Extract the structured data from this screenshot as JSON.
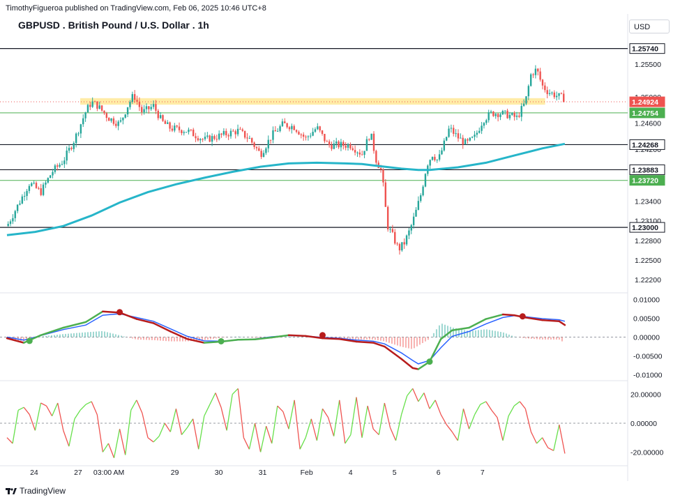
{
  "header": {
    "publisher": "TimothyFigueroa published on TradingView.com, Feb 06, 2025 10:46 UTC+8",
    "symbol": "GBPUSD . British Pound / U.S. Dollar . 1h",
    "currency": "USD"
  },
  "footer": {
    "brand": "TradingView"
  },
  "colors": {
    "bull": "#26a69a",
    "bear": "#ef5350",
    "ema": "#26b5c9",
    "macd_green": "#4caf50",
    "macd_red": "#b71c1c",
    "signal": "#2962ff",
    "support_green": "#4caf50",
    "zone": "#ffe58a"
  },
  "chart_data": [
    {
      "type": "candlestick",
      "pane": "price",
      "title": "GBPUSD . British Pound / U.S. Dollar . 1h",
      "ylim": [
        1.2205,
        1.2595
      ],
      "y_ticks": [
        "1.25500",
        "1.25000",
        "1.24600",
        "1.24200",
        "1.23400",
        "1.23100",
        "1.22800",
        "1.22500",
        "1.22200"
      ],
      "x_ticks": [
        {
          "label": "24",
          "t": 0.03
        },
        {
          "label": "27",
          "t": 0.13
        },
        {
          "label": "03:00 AM",
          "t": 0.2
        },
        {
          "label": "29",
          "t": 0.35
        },
        {
          "label": "30",
          "t": 0.45
        },
        {
          "label": "31",
          "t": 0.55
        },
        {
          "label": "Feb",
          "t": 0.65
        },
        {
          "label": "4",
          "t": 0.75
        },
        {
          "label": "5",
          "t": 0.85
        },
        {
          "label": "6",
          "t": 0.95
        },
        {
          "label": "7",
          "t": 1.05
        }
      ],
      "close_path": [
        [
          0.0,
          1.2302
        ],
        [
          0.02,
          1.2335
        ],
        [
          0.04,
          1.2368
        ],
        [
          0.06,
          1.2354
        ],
        [
          0.08,
          1.2385
        ],
        [
          0.1,
          1.2402
        ],
        [
          0.12,
          1.2435
        ],
        [
          0.14,
          1.2478
        ],
        [
          0.15,
          1.2492
        ],
        [
          0.16,
          1.2487
        ],
        [
          0.18,
          1.2468
        ],
        [
          0.2,
          1.2458
        ],
        [
          0.215,
          1.2488
        ],
        [
          0.225,
          1.2503
        ],
        [
          0.24,
          1.2476
        ],
        [
          0.26,
          1.2486
        ],
        [
          0.275,
          1.2462
        ],
        [
          0.29,
          1.2452
        ],
        [
          0.32,
          1.2448
        ],
        [
          0.35,
          1.2434
        ],
        [
          0.38,
          1.2441
        ],
        [
          0.41,
          1.2448
        ],
        [
          0.43,
          1.2436
        ],
        [
          0.45,
          1.2412
        ],
        [
          0.47,
          1.2441
        ],
        [
          0.49,
          1.2458
        ],
        [
          0.51,
          1.2454
        ],
        [
          0.53,
          1.2436
        ],
        [
          0.55,
          1.2453
        ],
        [
          0.57,
          1.2426
        ],
        [
          0.59,
          1.2426
        ],
        [
          0.61,
          1.2426
        ],
        [
          0.63,
          1.2412
        ],
        [
          0.645,
          1.2445
        ],
        [
          0.655,
          1.2404
        ],
        [
          0.665,
          1.2385
        ],
        [
          0.675,
          1.2303
        ],
        [
          0.685,
          1.2286
        ],
        [
          0.695,
          1.2266
        ],
        [
          0.705,
          1.2276
        ],
        [
          0.715,
          1.2296
        ],
        [
          0.725,
          1.2322
        ],
        [
          0.735,
          1.2352
        ],
        [
          0.745,
          1.2396
        ],
        [
          0.755,
          1.2412
        ],
        [
          0.765,
          1.2402
        ],
        [
          0.775,
          1.2426
        ],
        [
          0.785,
          1.2452
        ],
        [
          0.8,
          1.2438
        ],
        [
          0.815,
          1.2428
        ],
        [
          0.83,
          1.2438
        ],
        [
          0.845,
          1.2465
        ],
        [
          0.86,
          1.2475
        ],
        [
          0.875,
          1.2475
        ],
        [
          0.89,
          1.2472
        ],
        [
          0.905,
          1.2468
        ],
        [
          0.92,
          1.2492
        ],
        [
          0.93,
          1.2535
        ],
        [
          0.94,
          1.2542
        ],
        [
          0.95,
          1.2517
        ],
        [
          0.96,
          1.2508
        ],
        [
          0.975,
          1.2502
        ],
        [
          0.99,
          1.2497
        ]
      ],
      "ema": [
        [
          0.0,
          1.2288
        ],
        [
          0.05,
          1.2293
        ],
        [
          0.1,
          1.2302
        ],
        [
          0.15,
          1.2318
        ],
        [
          0.2,
          1.2338
        ],
        [
          0.25,
          1.2354
        ],
        [
          0.3,
          1.2366
        ],
        [
          0.35,
          1.2376
        ],
        [
          0.4,
          1.2385
        ],
        [
          0.45,
          1.2393
        ],
        [
          0.5,
          1.2398
        ],
        [
          0.55,
          1.2399
        ],
        [
          0.6,
          1.2398
        ],
        [
          0.63,
          1.2397
        ],
        [
          0.65,
          1.2395
        ],
        [
          0.7,
          1.239
        ],
        [
          0.73,
          1.2388
        ],
        [
          0.75,
          1.2388
        ],
        [
          0.8,
          1.2392
        ],
        [
          0.85,
          1.2399
        ],
        [
          0.9,
          1.241
        ],
        [
          0.95,
          1.2421
        ],
        [
          0.99,
          1.2428
        ]
      ],
      "horizontal_lines": [
        {
          "value": 1.2574,
          "label": "1.25740",
          "style": "black"
        },
        {
          "value": 1.24268,
          "label": "1.24268",
          "style": "black"
        },
        {
          "value": 1.23883,
          "label": "1.23883",
          "style": "black"
        },
        {
          "value": 1.23,
          "label": "1.23000",
          "style": "black"
        },
        {
          "value": 1.24754,
          "label": "1.24754",
          "style": "green"
        },
        {
          "value": 1.2372,
          "label": "1.23720",
          "style": "green"
        },
        {
          "value": 1.24924,
          "label": "1.24924",
          "style": "red-dotted"
        }
      ],
      "zone": {
        "from": 1.2488,
        "to": 1.2498,
        "t_start": 0.13,
        "t_end": 0.955
      }
    },
    {
      "type": "line",
      "pane": "macd",
      "ylim": [
        -0.011,
        0.011
      ],
      "y_ticks": [
        "0.01000",
        "0.00500",
        "0.00000",
        "-0.00500",
        "-0.01000"
      ],
      "macd": [
        [
          0.0,
          -0.0003
        ],
        [
          0.03,
          -0.0015
        ],
        [
          0.06,
          0.0005
        ],
        [
          0.1,
          0.0025
        ],
        [
          0.14,
          0.004
        ],
        [
          0.17,
          0.0068
        ],
        [
          0.2,
          0.0065
        ],
        [
          0.23,
          0.0048
        ],
        [
          0.26,
          0.0037
        ],
        [
          0.29,
          0.0015
        ],
        [
          0.32,
          -0.0005
        ],
        [
          0.35,
          -0.0015
        ],
        [
          0.38,
          -0.0012
        ],
        [
          0.41,
          -0.0007
        ],
        [
          0.44,
          -0.0006
        ],
        [
          0.47,
          -0.0001
        ],
        [
          0.5,
          0.0005
        ],
        [
          0.53,
          0.0003
        ],
        [
          0.56,
          -0.0003
        ],
        [
          0.59,
          -0.0005
        ],
        [
          0.62,
          -0.0012
        ],
        [
          0.65,
          -0.0015
        ],
        [
          0.67,
          -0.0025
        ],
        [
          0.7,
          -0.0058
        ],
        [
          0.72,
          -0.0082
        ],
        [
          0.73,
          -0.0085
        ],
        [
          0.75,
          -0.0065
        ],
        [
          0.77,
          -0.0005
        ],
        [
          0.79,
          0.0018
        ],
        [
          0.82,
          0.0025
        ],
        [
          0.85,
          0.0048
        ],
        [
          0.88,
          0.006
        ],
        [
          0.9,
          0.0058
        ],
        [
          0.92,
          0.0052
        ],
        [
          0.95,
          0.0045
        ],
        [
          0.98,
          0.0042
        ],
        [
          0.99,
          0.0032
        ]
      ],
      "signal": [
        [
          0.0,
          0.0
        ],
        [
          0.03,
          -0.0008
        ],
        [
          0.06,
          0.0004
        ],
        [
          0.1,
          0.002
        ],
        [
          0.14,
          0.0032
        ],
        [
          0.17,
          0.0058
        ],
        [
          0.2,
          0.0062
        ],
        [
          0.23,
          0.0052
        ],
        [
          0.26,
          0.0042
        ],
        [
          0.29,
          0.0022
        ],
        [
          0.32,
          0.0002
        ],
        [
          0.35,
          -0.001
        ],
        [
          0.38,
          -0.0011
        ],
        [
          0.41,
          -0.0008
        ],
        [
          0.44,
          -0.0005
        ],
        [
          0.47,
          0.0001
        ],
        [
          0.5,
          0.0004
        ],
        [
          0.53,
          0.0003
        ],
        [
          0.56,
          -0.0001
        ],
        [
          0.59,
          -0.0003
        ],
        [
          0.62,
          -0.0008
        ],
        [
          0.65,
          -0.0011
        ],
        [
          0.67,
          -0.0018
        ],
        [
          0.7,
          -0.0042
        ],
        [
          0.72,
          -0.0062
        ],
        [
          0.73,
          -0.0071
        ],
        [
          0.75,
          -0.0062
        ],
        [
          0.77,
          -0.0028
        ],
        [
          0.79,
          0.0002
        ],
        [
          0.82,
          0.0015
        ],
        [
          0.85,
          0.0035
        ],
        [
          0.88,
          0.0052
        ],
        [
          0.9,
          0.0057
        ],
        [
          0.92,
          0.0054
        ],
        [
          0.95,
          0.0049
        ],
        [
          0.98,
          0.0046
        ],
        [
          0.99,
          0.0042
        ]
      ],
      "cross_markers": [
        {
          "t": 0.04,
          "value": -0.001,
          "type": "bull"
        },
        {
          "t": 0.2,
          "value": 0.0066,
          "type": "bear"
        },
        {
          "t": 0.38,
          "value": -0.0011,
          "type": "bull"
        },
        {
          "t": 0.56,
          "value": 0.0005,
          "type": "bear"
        },
        {
          "t": 0.75,
          "value": -0.0065,
          "type": "bull"
        },
        {
          "t": 0.915,
          "value": 0.0055,
          "type": "bear"
        }
      ]
    },
    {
      "type": "line",
      "pane": "oscillator",
      "ylim": [
        -28,
        28
      ],
      "y_ticks": [
        "20.00000",
        "0.00000",
        "-20.00000"
      ],
      "series": [
        [
          0.0,
          -10
        ],
        [
          0.01,
          -14
        ],
        [
          0.02,
          9
        ],
        [
          0.03,
          11
        ],
        [
          0.04,
          6
        ],
        [
          0.05,
          -5
        ],
        [
          0.06,
          14
        ],
        [
          0.07,
          12
        ],
        [
          0.08,
          5
        ],
        [
          0.09,
          14
        ],
        [
          0.1,
          -5
        ],
        [
          0.11,
          -16
        ],
        [
          0.12,
          3
        ],
        [
          0.13,
          9
        ],
        [
          0.14,
          13
        ],
        [
          0.15,
          15
        ],
        [
          0.16,
          6
        ],
        [
          0.17,
          -20
        ],
        [
          0.18,
          -14
        ],
        [
          0.19,
          -24
        ],
        [
          0.2,
          -4
        ],
        [
          0.21,
          -22
        ],
        [
          0.22,
          9
        ],
        [
          0.23,
          16
        ],
        [
          0.24,
          7
        ],
        [
          0.25,
          -10
        ],
        [
          0.26,
          -13
        ],
        [
          0.27,
          -9
        ],
        [
          0.28,
          0
        ],
        [
          0.29,
          -6
        ],
        [
          0.3,
          10
        ],
        [
          0.31,
          -8
        ],
        [
          0.32,
          -3
        ],
        [
          0.33,
          3
        ],
        [
          0.34,
          -18
        ],
        [
          0.35,
          5
        ],
        [
          0.36,
          13
        ],
        [
          0.37,
          21
        ],
        [
          0.38,
          11
        ],
        [
          0.39,
          -5
        ],
        [
          0.4,
          20
        ],
        [
          0.41,
          24
        ],
        [
          0.42,
          -10
        ],
        [
          0.43,
          -18
        ],
        [
          0.44,
          0
        ],
        [
          0.45,
          -20
        ],
        [
          0.46,
          -2
        ],
        [
          0.47,
          -14
        ],
        [
          0.48,
          12
        ],
        [
          0.49,
          8
        ],
        [
          0.5,
          -4
        ],
        [
          0.51,
          16
        ],
        [
          0.52,
          -18
        ],
        [
          0.53,
          -10
        ],
        [
          0.54,
          3
        ],
        [
          0.55,
          -12
        ],
        [
          0.56,
          10
        ],
        [
          0.57,
          4
        ],
        [
          0.58,
          -9
        ],
        [
          0.59,
          16
        ],
        [
          0.6,
          -14
        ],
        [
          0.61,
          -8
        ],
        [
          0.62,
          18
        ],
        [
          0.63,
          -10
        ],
        [
          0.64,
          12
        ],
        [
          0.65,
          -4
        ],
        [
          0.66,
          -8
        ],
        [
          0.67,
          14
        ],
        [
          0.68,
          -3
        ],
        [
          0.69,
          -12
        ],
        [
          0.7,
          6
        ],
        [
          0.71,
          19
        ],
        [
          0.72,
          24
        ],
        [
          0.73,
          15
        ],
        [
          0.74,
          21
        ],
        [
          0.75,
          10
        ],
        [
          0.76,
          16
        ],
        [
          0.77,
          6
        ],
        [
          0.78,
          -1
        ],
        [
          0.79,
          -6
        ],
        [
          0.8,
          -12
        ],
        [
          0.81,
          10
        ],
        [
          0.82,
          -4
        ],
        [
          0.83,
          6
        ],
        [
          0.84,
          13
        ],
        [
          0.85,
          15
        ],
        [
          0.86,
          9
        ],
        [
          0.87,
          4
        ],
        [
          0.88,
          -12
        ],
        [
          0.89,
          5
        ],
        [
          0.9,
          12
        ],
        [
          0.91,
          15
        ],
        [
          0.92,
          10
        ],
        [
          0.93,
          -6
        ],
        [
          0.94,
          -14
        ],
        [
          0.95,
          -10
        ],
        [
          0.96,
          -17
        ],
        [
          0.97,
          -19
        ],
        [
          0.98,
          -1
        ],
        [
          0.99,
          -21
        ]
      ]
    }
  ]
}
